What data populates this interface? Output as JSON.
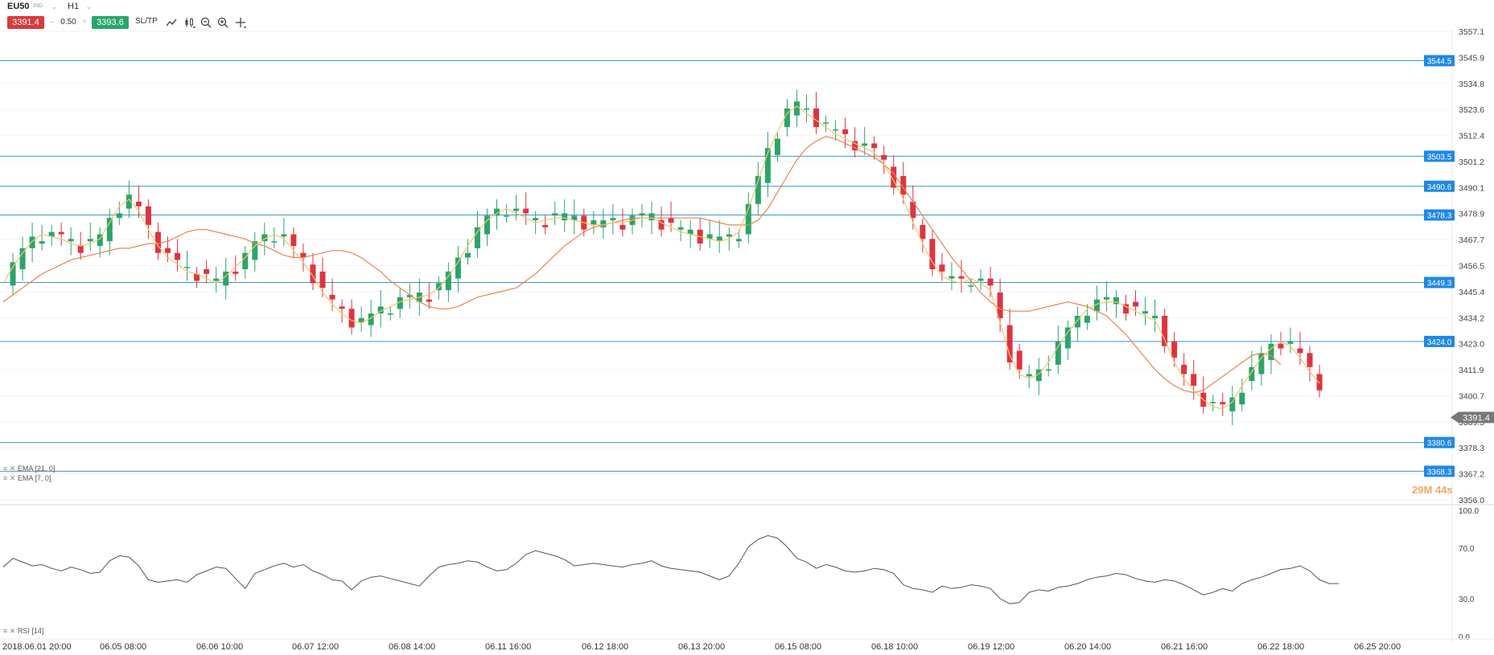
{
  "header": {
    "symbol": "EU50",
    "symbol_type": "IND",
    "timeframe": "H1",
    "sell_price": "3391.4",
    "buy_price": "3393.6",
    "volume": "0.50",
    "sltp_label": "SL/TP"
  },
  "toolbar_icons": [
    "line-chart-icon",
    "candles-icon",
    "zoom-out-icon",
    "zoom-in-icon",
    "crosshair-icon"
  ],
  "colors": {
    "up": "#2ca46b",
    "down": "#dd3441",
    "ema21": "#e8844f",
    "ema7": "#f1c66b",
    "level_line": "#3a97d4",
    "level_tag": "#1e88e5",
    "current_tag": "#777777",
    "rsi_line": "#555555",
    "sell_button": "#d63b3b",
    "buy_button": "#2aa56a"
  },
  "indicators": {
    "ema21_label": "EMA [21, 0]",
    "ema7_label": "EMA [7, 0]",
    "rsi_label": "RSI [14]"
  },
  "countdown": "29M 44s",
  "chart_data": [
    {
      "type": "candlestick",
      "ylim": [
        3356.0,
        3557.1
      ],
      "y_ticks": [
        "3557.1",
        "3545.9",
        "3534.8",
        "3523.6",
        "3512.4",
        "3501.2",
        "3490.1",
        "3478.9",
        "3467.7",
        "3456.5",
        "3445.4",
        "3434.2",
        "3423.0",
        "3411.9",
        "3400.7",
        "3389.5",
        "3378.3",
        "3367.2",
        "3356.0"
      ],
      "x_ticks": [
        "2018.06.01 20:00",
        "06.05 08:00",
        "06.06 10:00",
        "06.07 12:00",
        "06.08 14:00",
        "06.11 16:00",
        "06.12 18:00",
        "06.13 20:00",
        "06.15 08:00",
        "06.18 10:00",
        "06.19 12:00",
        "06.20 14:00",
        "06.21 16:00",
        "06.22 18:00",
        "06.25 20:00"
      ],
      "horizontal_levels": [
        "3544.5",
        "3503.5",
        "3490.6",
        "3478.3",
        "3449.3",
        "3424.0",
        "3380.6",
        "3368.3"
      ],
      "current_price": "3391.4",
      "ema21": [
        3441,
        3444,
        3447,
        3450,
        3453,
        3455,
        3457,
        3459,
        3460,
        3461,
        3462,
        3463,
        3464,
        3464,
        3465,
        3466,
        3466,
        3467,
        3469,
        3471,
        3472,
        3472,
        3471,
        3470,
        3469,
        3468,
        3466,
        3465,
        3463,
        3461,
        3460,
        3460,
        3461,
        3462,
        3463,
        3463,
        3462,
        3460,
        3457,
        3454,
        3450,
        3447,
        3444,
        3441,
        3439,
        3438,
        3438,
        3439,
        3441,
        3443,
        3444,
        3445,
        3446,
        3447,
        3450,
        3453,
        3457,
        3461,
        3465,
        3468,
        3471,
        3473,
        3474,
        3475,
        3476,
        3477,
        3477,
        3477,
        3477,
        3477,
        3477,
        3477,
        3477,
        3476,
        3475,
        3474,
        3474,
        3474,
        3476,
        3481,
        3488,
        3495,
        3502,
        3507,
        3510,
        3512,
        3511,
        3509,
        3507,
        3505,
        3503,
        3500,
        3496,
        3490,
        3484,
        3478,
        3472,
        3466,
        3460,
        3455,
        3450,
        3445,
        3441,
        3438,
        3437,
        3437,
        3437,
        3438,
        3439,
        3440,
        3441,
        3440,
        3439,
        3437,
        3435,
        3431,
        3427,
        3422,
        3417,
        3412,
        3408,
        3405,
        3403,
        3402,
        3403,
        3406,
        3409,
        3412,
        3415,
        3418,
        3419,
        3418,
        3414
      ],
      "ema7": [
        3449,
        3456,
        3462,
        3467,
        3470,
        3469,
        3468,
        3466,
        3465,
        3466,
        3468,
        3475,
        3482,
        3485,
        3480,
        3472,
        3465,
        3460,
        3457,
        3454,
        3453,
        3451,
        3449,
        3452,
        3456,
        3460,
        3465,
        3468,
        3470,
        3468,
        3463,
        3458,
        3452,
        3445,
        3440,
        3436,
        3433,
        3432,
        3434,
        3437,
        3439,
        3441,
        3442,
        3443,
        3444,
        3447,
        3452,
        3458,
        3465,
        3471,
        3476,
        3479,
        3481,
        3479,
        3477,
        3475,
        3476,
        3477,
        3477,
        3476,
        3475,
        3474,
        3474,
        3475,
        3475,
        3476,
        3477,
        3477,
        3475,
        3473,
        3471,
        3470,
        3469,
        3468,
        3467,
        3468,
        3471,
        3481,
        3493,
        3505,
        3514,
        3522,
        3525,
        3522,
        3519,
        3516,
        3513,
        3511,
        3509,
        3507,
        3505,
        3500,
        3493,
        3485,
        3475,
        3466,
        3458,
        3452,
        3450,
        3449,
        3451,
        3449,
        3446,
        3432,
        3418,
        3410,
        3408,
        3410,
        3415,
        3422,
        3428,
        3433,
        3438,
        3440,
        3441,
        3441,
        3439,
        3437,
        3435,
        3433,
        3425,
        3415,
        3408,
        3403,
        3399,
        3396,
        3395,
        3398,
        3405,
        3411,
        3417,
        3421,
        3424,
        3422,
        3417,
        3411,
        3406
      ],
      "rsi": [
        55,
        62,
        59,
        56,
        57,
        54,
        52,
        55,
        53,
        50,
        51,
        60,
        64,
        63,
        56,
        45,
        43,
        44,
        45,
        43,
        49,
        52,
        55,
        54,
        46,
        38,
        50,
        53,
        56,
        58,
        55,
        57,
        52,
        49,
        45,
        44,
        37,
        44,
        47,
        48,
        46,
        44,
        42,
        40,
        48,
        55,
        57,
        58,
        60,
        59,
        55,
        52,
        53,
        58,
        65,
        68,
        66,
        64,
        61,
        56,
        57,
        58,
        57,
        56,
        55,
        57,
        58,
        60,
        56,
        54,
        53,
        52,
        51,
        48,
        45,
        48,
        58,
        71,
        77,
        80,
        78,
        71,
        62,
        59,
        54,
        57,
        55,
        52,
        51,
        52,
        54,
        53,
        50,
        41,
        38,
        37,
        35,
        40,
        38,
        39,
        41,
        40,
        38,
        30,
        26,
        27,
        35,
        37,
        36,
        39,
        40,
        42,
        45,
        47,
        48,
        50,
        49,
        46,
        44,
        43,
        45,
        44,
        41,
        37,
        33,
        35,
        38,
        36,
        42,
        45,
        47,
        50,
        53,
        54,
        56,
        52,
        45,
        42,
        42
      ]
    }
  ]
}
